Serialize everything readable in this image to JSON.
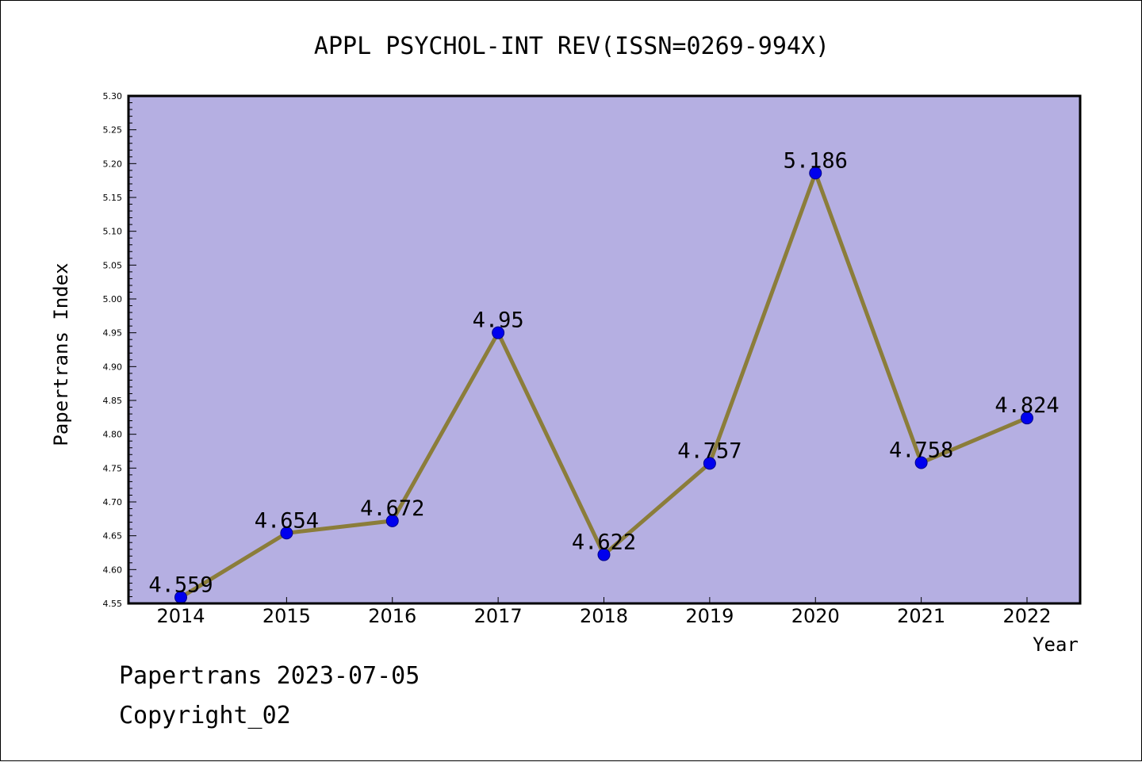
{
  "chart_data": {
    "type": "line",
    "title": "APPL PSYCHOL-INT REV(ISSN=0269-994X)",
    "xlabel": "Year",
    "ylabel": "Papertrans Index",
    "categories": [
      "2014",
      "2015",
      "2016",
      "2017",
      "2018",
      "2019",
      "2020",
      "2021",
      "2022"
    ],
    "values": [
      4.559,
      4.654,
      4.672,
      4.95,
      4.622,
      4.757,
      5.186,
      4.758,
      4.824
    ],
    "data_labels": [
      "4.559",
      "4.654",
      "4.672",
      "4.95",
      "4.622",
      "4.757",
      "5.186",
      "4.758",
      "4.824"
    ],
    "ylim": [
      4.55,
      5.3
    ],
    "yticks": [
      "4.55",
      "4.60",
      "4.65",
      "4.70",
      "4.75",
      "4.80",
      "4.85",
      "4.90",
      "4.95",
      "5.00",
      "5.05",
      "5.10",
      "5.15",
      "5.20",
      "5.25",
      "5.30"
    ],
    "ytick_values": [
      4.55,
      4.6,
      4.65,
      4.7,
      4.75,
      4.8,
      4.85,
      4.9,
      4.95,
      5.0,
      5.05,
      5.1,
      5.15,
      5.2,
      5.25,
      5.3
    ],
    "grid": false,
    "colors": {
      "plot_background": "#b5afe2",
      "line": "#8b7d3a",
      "marker": "#0000ee",
      "marker_edge": "#00008b"
    }
  },
  "footer": {
    "line1": "Papertrans 2023-07-05",
    "line2": "Copyright_02"
  }
}
